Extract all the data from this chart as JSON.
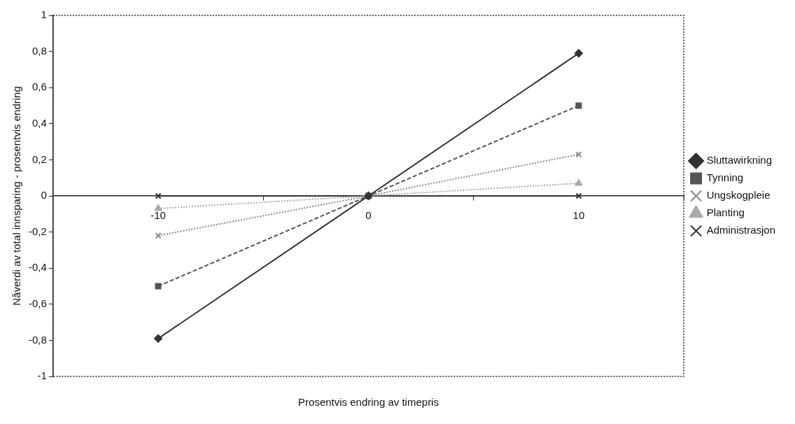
{
  "chart_data": {
    "type": "line",
    "xlabel": "Prosentvis endring av timepris",
    "ylabel": "Nåverdi av total innsparing - prosentvis endring",
    "categories": [
      "-10",
      "0",
      "10"
    ],
    "ylim": [
      -1,
      1
    ],
    "yticks": [
      {
        "value": -1,
        "label": "-1"
      },
      {
        "value": -0.8,
        "label": "-0,8"
      },
      {
        "value": -0.6,
        "label": "-0,6"
      },
      {
        "value": -0.4,
        "label": "-0,4"
      },
      {
        "value": -0.2,
        "label": "-0,2"
      },
      {
        "value": 0,
        "label": "0"
      },
      {
        "value": 0.2,
        "label": "0,2"
      },
      {
        "value": 0.4,
        "label": "0,4"
      },
      {
        "value": 0.6,
        "label": "0,6"
      },
      {
        "value": 0.8,
        "label": "0,8"
      },
      {
        "value": 1,
        "label": "1"
      }
    ],
    "grid": false,
    "legend": "right",
    "series": [
      {
        "name": "Sluttawirkning",
        "color": "#333333",
        "marker": "diamond",
        "line_style": "solid",
        "values": [
          -0.79,
          0,
          0.79
        ]
      },
      {
        "name": "Tynning",
        "color": "#555555",
        "marker": "square",
        "line_style": "dashed",
        "values": [
          -0.5,
          0,
          0.5
        ]
      },
      {
        "name": "Ungskogpleie",
        "color": "#888888",
        "marker": "cross",
        "line_style": "dotted",
        "values": [
          -0.22,
          0,
          0.23
        ]
      },
      {
        "name": "Planting",
        "color": "#aaaaaa",
        "marker": "triangle",
        "line_style": "dotted",
        "values": [
          -0.07,
          0,
          0.07
        ]
      },
      {
        "name": "Administrasjon",
        "color": "#333333",
        "marker": "cross",
        "line_style": "solid",
        "values": [
          0,
          0,
          0
        ]
      }
    ]
  }
}
